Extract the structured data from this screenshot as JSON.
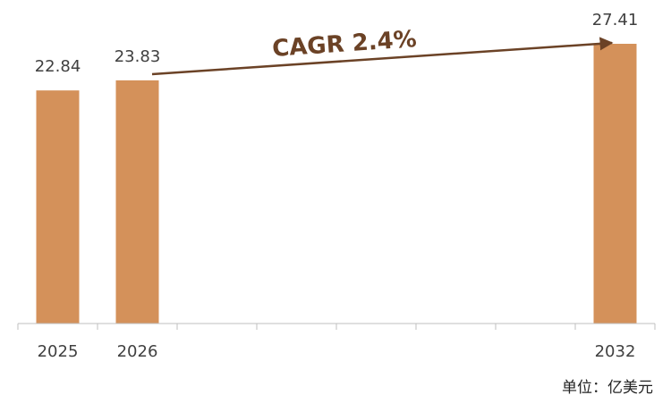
{
  "chart_data": {
    "type": "bar",
    "categories": [
      "2025",
      "2026",
      null,
      null,
      null,
      null,
      null,
      "2032"
    ],
    "values": [
      22.84,
      23.83,
      null,
      null,
      null,
      null,
      null,
      27.41
    ],
    "color": "#d4915a",
    "annotation": "CAGR 2.4%",
    "unit_label": "单位：亿美元"
  }
}
